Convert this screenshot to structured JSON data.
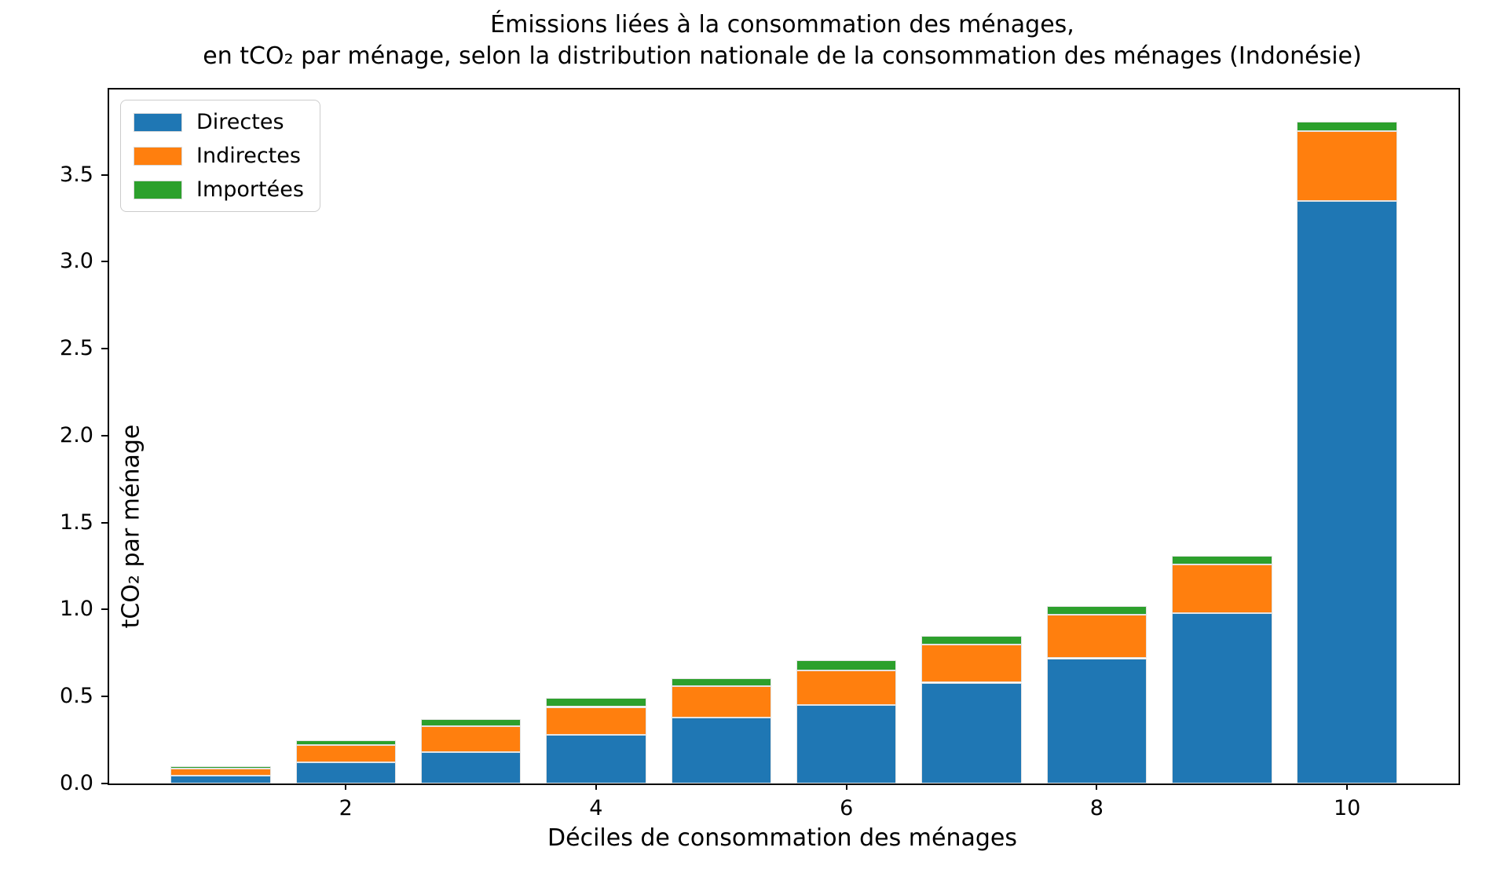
{
  "figure": {
    "title_line1": "Émissions liées à la consommation des ménages,",
    "title_line2": "en tCO₂ par ménage, selon la distribution nationale de la consommation des ménages (Indonésie)"
  },
  "chart_data": {
    "type": "bar",
    "stacked": true,
    "title": "Émissions liées à la consommation des ménages,\nen tCO₂ par ménage, selon la distribution nationale de la consommation des ménages (Indonésie)",
    "xlabel": "Déciles de consommation des ménages",
    "ylabel": "tCO₂ par ménage",
    "categories": [
      1,
      2,
      3,
      4,
      5,
      6,
      7,
      8,
      9,
      10
    ],
    "series": [
      {
        "name": "Directes",
        "color": "#1f77b4",
        "values": [
          0.045,
          0.12,
          0.18,
          0.28,
          0.38,
          0.45,
          0.58,
          0.72,
          0.98,
          3.35
        ]
      },
      {
        "name": "Indirectes",
        "color": "#ff7f0e",
        "values": [
          0.04,
          0.1,
          0.15,
          0.16,
          0.18,
          0.2,
          0.22,
          0.25,
          0.28,
          0.4
        ]
      },
      {
        "name": "Importées",
        "color": "#2ca02c",
        "values": [
          0.015,
          0.03,
          0.04,
          0.05,
          0.045,
          0.06,
          0.05,
          0.05,
          0.05,
          0.055
        ]
      }
    ],
    "bar_width": 0.8,
    "xticks": [
      2,
      4,
      6,
      8,
      10
    ],
    "xtick_labels": [
      "2",
      "4",
      "6",
      "8",
      "10"
    ],
    "yticks": [
      0.0,
      0.5,
      1.0,
      1.5,
      2.0,
      2.5,
      3.0,
      3.5
    ],
    "ytick_labels": [
      "0.0",
      "0.5",
      "1.0",
      "1.5",
      "2.0",
      "2.5",
      "3.0",
      "3.5"
    ],
    "xlim": [
      0.11,
      10.89
    ],
    "ylim": [
      0,
      3.99
    ],
    "grid": false,
    "legend_position": "upper left",
    "background_color": "#ffffff",
    "axis_color": "#000000"
  }
}
